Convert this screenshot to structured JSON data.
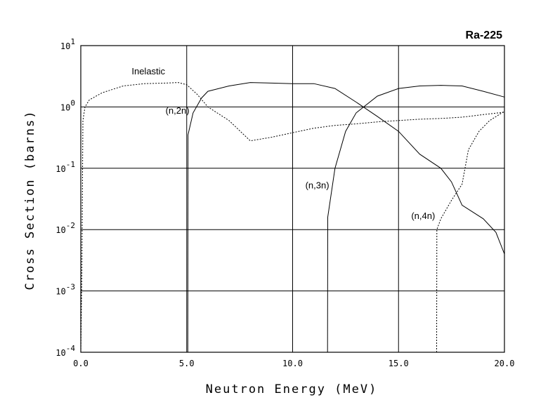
{
  "chart_data": {
    "type": "line",
    "title": "Ra-225",
    "xlabel": "Neutron Energy (MeV)",
    "ylabel": "Cross Section (barns)",
    "xlim": [
      0,
      20
    ],
    "ylim": [
      0.0001,
      10
    ],
    "yscale": "log",
    "grid": true,
    "x_tick_labels": [
      "0.0",
      "5.0",
      "10.0",
      "15.0",
      "20.0"
    ],
    "y_tick_labels": [
      {
        "base": "10",
        "exp": "1"
      },
      {
        "base": "10",
        "exp": "0"
      },
      {
        "base": "10",
        "exp": "-1"
      },
      {
        "base": "10",
        "exp": "-2"
      },
      {
        "base": "10",
        "exp": "-3"
      },
      {
        "base": "10",
        "exp": "-4"
      }
    ],
    "series": [
      {
        "name": "Inelastic",
        "style": "dotted",
        "points": [
          [
            0.0,
            0.0001
          ],
          [
            0.05,
            0.002
          ],
          [
            0.1,
            0.6
          ],
          [
            0.2,
            1.0
          ],
          [
            0.4,
            1.3
          ],
          [
            1.0,
            1.7
          ],
          [
            2.0,
            2.2
          ],
          [
            3.0,
            2.4
          ],
          [
            4.0,
            2.45
          ],
          [
            4.6,
            2.5
          ],
          [
            5.0,
            2.3
          ],
          [
            5.5,
            1.6
          ],
          [
            6.0,
            1.0
          ],
          [
            7.0,
            0.6
          ],
          [
            8.0,
            0.28
          ],
          [
            9.0,
            0.32
          ],
          [
            10.0,
            0.38
          ],
          [
            11.0,
            0.45
          ],
          [
            12.0,
            0.5
          ],
          [
            13.0,
            0.53
          ],
          [
            14.0,
            0.57
          ],
          [
            15.0,
            0.6
          ],
          [
            16.0,
            0.63
          ],
          [
            17.0,
            0.65
          ],
          [
            18.0,
            0.68
          ],
          [
            19.0,
            0.75
          ],
          [
            20.0,
            0.82
          ]
        ]
      },
      {
        "name": "(n,2n)",
        "style": "solid",
        "points": [
          [
            5.05,
            0.0001
          ],
          [
            5.06,
            0.35
          ],
          [
            5.3,
            0.8
          ],
          [
            5.7,
            1.4
          ],
          [
            6.0,
            1.8
          ],
          [
            7.0,
            2.2
          ],
          [
            8.0,
            2.5
          ],
          [
            9.0,
            2.45
          ],
          [
            10.0,
            2.4
          ],
          [
            11.0,
            2.4
          ],
          [
            12.0,
            2.0
          ],
          [
            13.0,
            1.2
          ],
          [
            14.0,
            0.7
          ],
          [
            15.0,
            0.4
          ],
          [
            16.0,
            0.17
          ],
          [
            17.0,
            0.1
          ],
          [
            17.5,
            0.06
          ],
          [
            18.0,
            0.025
          ],
          [
            19.0,
            0.015
          ],
          [
            19.6,
            0.009
          ],
          [
            20.0,
            0.004
          ]
        ]
      },
      {
        "name": "(n,3n)",
        "style": "solid",
        "points": [
          [
            11.65,
            0.0001
          ],
          [
            11.66,
            0.016
          ],
          [
            12.0,
            0.1
          ],
          [
            12.5,
            0.4
          ],
          [
            13.0,
            0.8
          ],
          [
            14.0,
            1.5
          ],
          [
            15.0,
            2.0
          ],
          [
            16.0,
            2.2
          ],
          [
            17.0,
            2.25
          ],
          [
            18.0,
            2.2
          ],
          [
            19.0,
            1.8
          ],
          [
            20.0,
            1.45
          ]
        ]
      },
      {
        "name": "(n,4n)",
        "style": "dotted",
        "points": [
          [
            16.8,
            0.0001
          ],
          [
            16.81,
            0.01
          ],
          [
            17.0,
            0.015
          ],
          [
            17.5,
            0.03
          ],
          [
            18.0,
            0.055
          ],
          [
            18.3,
            0.2
          ],
          [
            18.8,
            0.4
          ],
          [
            19.3,
            0.6
          ],
          [
            20.0,
            0.85
          ]
        ]
      }
    ],
    "annotations": [
      {
        "text": "Inelastic",
        "x": 2.4,
        "y": 3.4
      },
      {
        "text": "(n,2n)",
        "x": 4.0,
        "y": 0.78
      },
      {
        "text": "(n,3n)",
        "x": 10.6,
        "y": 0.047
      },
      {
        "text": "(n,4n)",
        "x": 15.6,
        "y": 0.015
      }
    ]
  }
}
